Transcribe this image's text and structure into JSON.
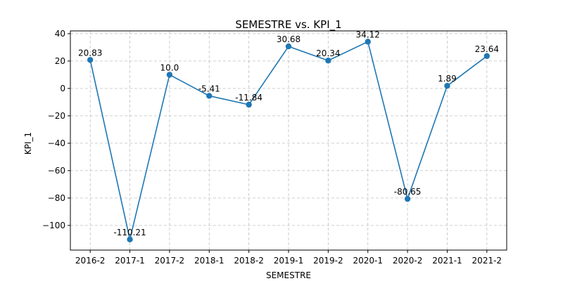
{
  "chart_data": {
    "type": "line",
    "title": "SEMESTRE vs. KPI_1",
    "xlabel": "SEMESTRE",
    "ylabel": "KPI_1",
    "categories": [
      "2016-2",
      "2017-1",
      "2017-2",
      "2018-1",
      "2018-2",
      "2019-1",
      "2019-2",
      "2020-1",
      "2020-2",
      "2021-1",
      "2021-2"
    ],
    "series": [
      {
        "values": [
          20.83,
          -110.21,
          10.0,
          -5.41,
          -11.84,
          30.68,
          20.34,
          34.12,
          -80.65,
          1.89,
          23.64
        ],
        "labels": [
          "20.83",
          "-110.21",
          "10.0",
          "-5.41",
          "-11.84",
          "30.68",
          "20.34",
          "34.12",
          "-80.65",
          "1.89",
          "23.64"
        ],
        "color": "#1f77b4"
      }
    ],
    "ylim": [
      -118,
      42
    ],
    "yticks": [
      40,
      20,
      0,
      -20,
      -40,
      -60,
      -80,
      -100
    ],
    "ytick_labels": [
      "40",
      "20",
      "0",
      "−20",
      "−40",
      "−60",
      "−80",
      "−100"
    ],
    "grid": true,
    "marker": "circle"
  }
}
